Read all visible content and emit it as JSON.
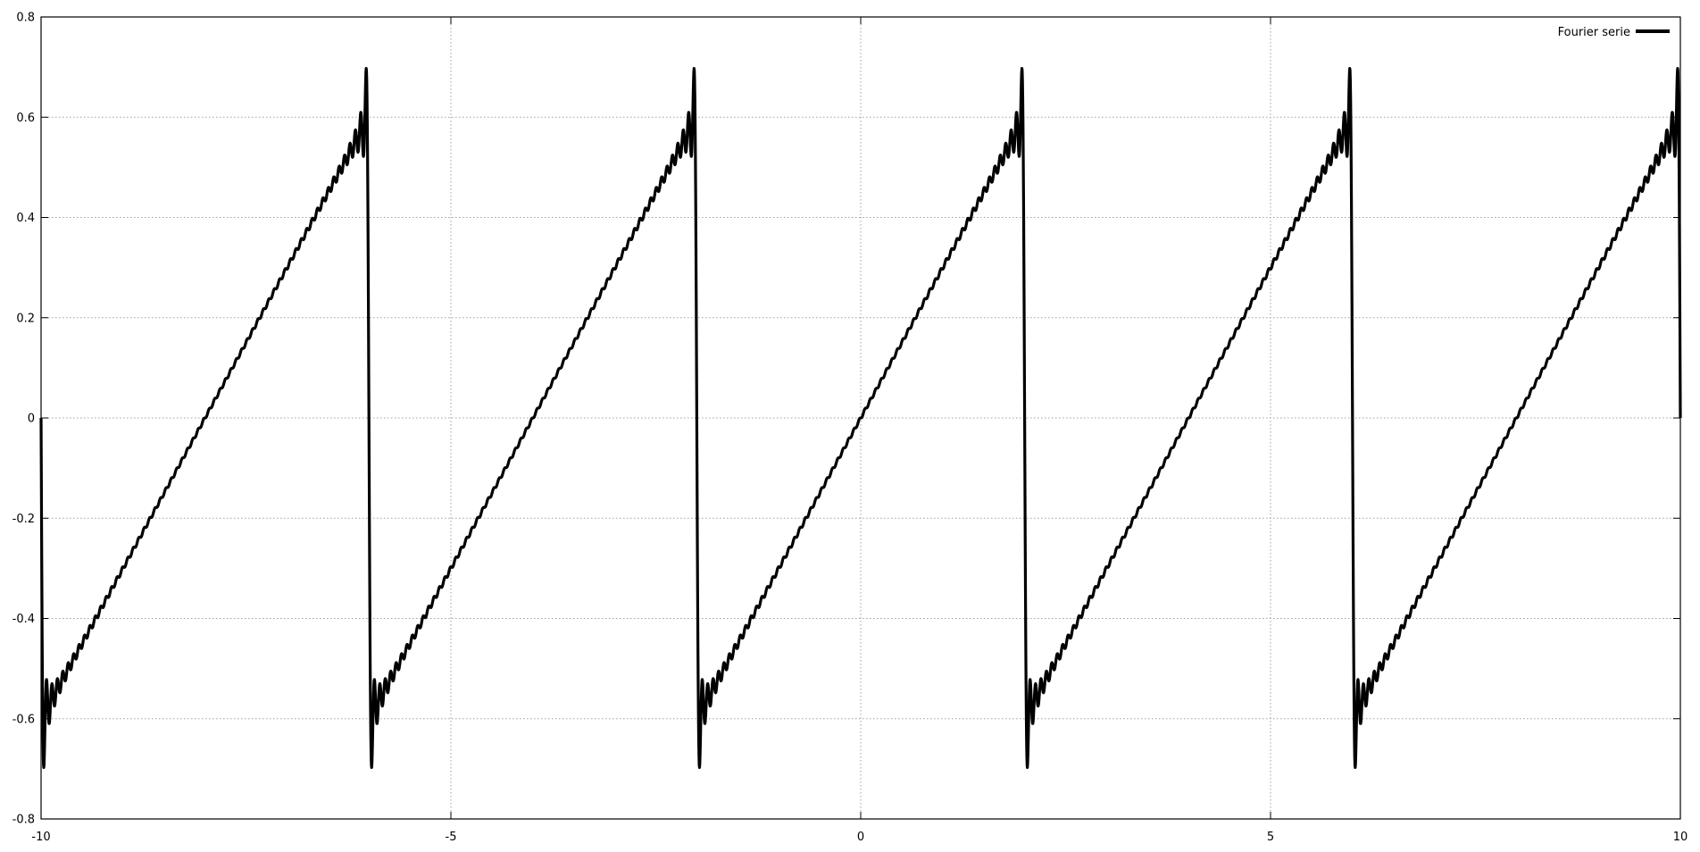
{
  "chart_data": {
    "type": "line",
    "title": "",
    "xlabel": "",
    "ylabel": "",
    "xlim": [
      -10,
      10
    ],
    "ylim": [
      -0.8,
      0.8
    ],
    "x_ticks": [
      -10,
      -5,
      0,
      5,
      10
    ],
    "y_ticks": [
      -0.8,
      -0.6,
      -0.4,
      -0.2,
      0,
      0.2,
      0.4,
      0.6,
      0.8
    ],
    "grid": true,
    "legend_position": "top-right",
    "series": [
      {
        "name": "Fourier serie",
        "color": "#000000",
        "period": 4,
        "kind": "sawtooth",
        "amplitude": 0.6,
        "harmonics": 60,
        "x_range": [
          -10,
          10
        ]
      }
    ]
  }
}
